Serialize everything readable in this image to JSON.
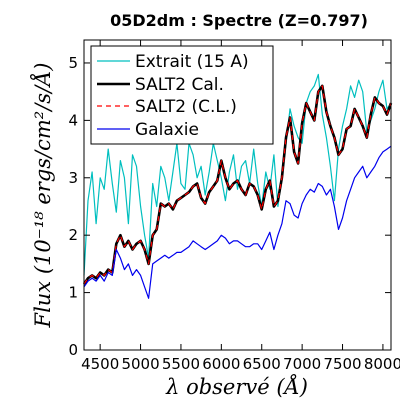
{
  "chart_data": {
    "type": "line",
    "title": "05D2dm : Spectre (Z=0.797)",
    "xlabel": "λ observé (Å)",
    "ylabel": "Flux (10⁻¹⁸ ergs/cm²/s/Å)",
    "xlim": [
      4300,
      8100
    ],
    "ylim": [
      0,
      5.4
    ],
    "xticks": [
      4500,
      5000,
      5500,
      6000,
      6500,
      7000,
      7500,
      8000
    ],
    "yticks": [
      0,
      1,
      2,
      3,
      4,
      5
    ],
    "legend_position": "top-left",
    "series": [
      {
        "name": "Extrait (15 A)",
        "color": "#00bfbf",
        "x": [
          4300,
          4350,
          4400,
          4450,
          4500,
          4550,
          4600,
          4650,
          4700,
          4750,
          4800,
          4850,
          4900,
          4950,
          5000,
          5050,
          5100,
          5150,
          5200,
          5250,
          5300,
          5350,
          5400,
          5450,
          5500,
          5550,
          5600,
          5650,
          5700,
          5750,
          5800,
          5850,
          5900,
          5950,
          6000,
          6050,
          6100,
          6150,
          6200,
          6250,
          6300,
          6350,
          6400,
          6450,
          6500,
          6550,
          6600,
          6650,
          6700,
          6750,
          6800,
          6850,
          6900,
          6950,
          7000,
          7050,
          7100,
          7150,
          7200,
          7250,
          7300,
          7350,
          7400,
          7450,
          7500,
          7550,
          7600,
          7650,
          7700,
          7750,
          7800,
          7850,
          7900,
          7950,
          8000,
          8050,
          8100
        ],
        "y": [
          1.3,
          2.6,
          3.1,
          2.2,
          3.0,
          2.8,
          3.5,
          2.9,
          2.4,
          3.3,
          3.0,
          2.2,
          3.4,
          3.2,
          2.5,
          2.0,
          1.6,
          2.9,
          2.5,
          3.2,
          3.0,
          2.6,
          3.1,
          3.6,
          2.9,
          2.8,
          3.6,
          3.4,
          3.0,
          3.2,
          2.7,
          3.1,
          3.6,
          3.3,
          3.0,
          2.6,
          3.1,
          3.4,
          2.8,
          3.2,
          3.3,
          2.9,
          3.5,
          2.9,
          2.5,
          3.1,
          2.8,
          3.4,
          2.5,
          3.0,
          3.6,
          4.2,
          3.9,
          3.7,
          3.6,
          4.3,
          4.5,
          4.6,
          4.8,
          4.1,
          3.7,
          3.2,
          2.6,
          3.5,
          3.9,
          4.2,
          4.6,
          4.4,
          4.7,
          4.5,
          3.8,
          4.0,
          4.2,
          4.5,
          4.7,
          4.2,
          4.3
        ]
      },
      {
        "name": "SALT2 Cal.",
        "color": "#000000",
        "x": [
          4300,
          4350,
          4400,
          4450,
          4500,
          4550,
          4600,
          4650,
          4700,
          4750,
          4800,
          4850,
          4900,
          4950,
          5000,
          5050,
          5100,
          5150,
          5200,
          5250,
          5300,
          5350,
          5400,
          5450,
          5500,
          5550,
          5600,
          5650,
          5700,
          5750,
          5800,
          5850,
          5900,
          5950,
          6000,
          6050,
          6100,
          6150,
          6200,
          6250,
          6300,
          6350,
          6400,
          6450,
          6500,
          6550,
          6600,
          6650,
          6700,
          6750,
          6800,
          6850,
          6900,
          6950,
          7000,
          7050,
          7100,
          7150,
          7200,
          7250,
          7300,
          7350,
          7400,
          7450,
          7500,
          7550,
          7600,
          7650,
          7700,
          7750,
          7800,
          7850,
          7900,
          7950,
          8000,
          8050,
          8100
        ],
        "y": [
          1.15,
          1.25,
          1.3,
          1.25,
          1.35,
          1.3,
          1.4,
          1.35,
          1.85,
          2.0,
          1.8,
          1.9,
          1.75,
          1.85,
          1.9,
          1.75,
          1.5,
          2.0,
          2.1,
          2.55,
          2.5,
          2.55,
          2.45,
          2.6,
          2.65,
          2.7,
          2.75,
          2.85,
          2.9,
          2.65,
          2.55,
          2.75,
          2.85,
          2.95,
          3.3,
          3.0,
          2.8,
          2.9,
          2.95,
          2.8,
          2.7,
          2.9,
          2.85,
          2.7,
          2.45,
          2.8,
          2.95,
          2.5,
          2.6,
          3.0,
          3.7,
          4.05,
          3.45,
          3.25,
          3.95,
          4.3,
          4.15,
          4.0,
          4.5,
          4.6,
          4.15,
          3.9,
          3.7,
          3.4,
          3.5,
          3.85,
          3.9,
          4.2,
          4.05,
          3.9,
          3.7,
          4.1,
          4.4,
          4.3,
          4.25,
          4.1,
          4.3
        ]
      },
      {
        "name": "SALT2 (C.L.)",
        "color": "#ff0000",
        "x": [
          4300,
          4350,
          4400,
          4450,
          4500,
          4550,
          4600,
          4650,
          4700,
          4750,
          4800,
          4850,
          4900,
          4950,
          5000,
          5050,
          5100,
          5150,
          5200,
          5250,
          5300,
          5350,
          5400,
          5450,
          5500,
          5550,
          5600,
          5650,
          5700,
          5750,
          5800,
          5850,
          5900,
          5950,
          6000,
          6050,
          6100,
          6150,
          6200,
          6250,
          6300,
          6350,
          6400,
          6450,
          6500,
          6550,
          6600,
          6650,
          6700,
          6750,
          6800,
          6850,
          6900,
          6950,
          7000,
          7050,
          7100,
          7150,
          7200,
          7250,
          7300,
          7350,
          7400,
          7450,
          7500,
          7550,
          7600,
          7650,
          7700,
          7750,
          7800,
          7850,
          7900,
          7950,
          8000,
          8050,
          8100
        ],
        "y": [
          1.15,
          1.25,
          1.3,
          1.25,
          1.35,
          1.3,
          1.4,
          1.35,
          1.85,
          2.0,
          1.8,
          1.9,
          1.75,
          1.85,
          1.9,
          1.75,
          1.5,
          2.0,
          2.1,
          2.55,
          2.5,
          2.55,
          2.45,
          2.6,
          2.65,
          2.7,
          2.75,
          2.85,
          2.9,
          2.65,
          2.55,
          2.75,
          2.85,
          2.95,
          3.3,
          3.0,
          2.8,
          2.9,
          2.95,
          2.8,
          2.7,
          2.9,
          2.85,
          2.7,
          2.45,
          2.8,
          2.95,
          2.5,
          2.6,
          3.0,
          3.7,
          4.05,
          3.45,
          3.25,
          3.95,
          4.3,
          4.15,
          4.0,
          4.5,
          4.6,
          4.15,
          3.9,
          3.7,
          3.4,
          3.5,
          3.85,
          3.9,
          4.2,
          4.05,
          3.9,
          3.7,
          4.1,
          4.4,
          4.3,
          4.25,
          4.1,
          4.3
        ]
      },
      {
        "name": "Galaxie",
        "color": "#0000ee",
        "x": [
          4300,
          4350,
          4400,
          4450,
          4500,
          4550,
          4600,
          4650,
          4700,
          4750,
          4800,
          4850,
          4900,
          4950,
          5000,
          5050,
          5100,
          5150,
          5200,
          5250,
          5300,
          5350,
          5400,
          5450,
          5500,
          5550,
          5600,
          5650,
          5700,
          5750,
          5800,
          5850,
          5900,
          5950,
          6000,
          6050,
          6100,
          6150,
          6200,
          6250,
          6300,
          6350,
          6400,
          6450,
          6500,
          6550,
          6600,
          6650,
          6700,
          6750,
          6800,
          6850,
          6900,
          6950,
          7000,
          7050,
          7100,
          7150,
          7200,
          7250,
          7300,
          7350,
          7400,
          7450,
          7500,
          7550,
          7600,
          7650,
          7700,
          7750,
          7800,
          7850,
          7900,
          7950,
          8000,
          8050,
          8100
        ],
        "y": [
          1.1,
          1.2,
          1.25,
          1.2,
          1.3,
          1.2,
          1.35,
          1.3,
          1.75,
          1.6,
          1.4,
          1.5,
          1.3,
          1.4,
          1.3,
          1.1,
          0.9,
          1.5,
          1.55,
          1.6,
          1.65,
          1.6,
          1.65,
          1.7,
          1.7,
          1.75,
          1.8,
          1.9,
          1.85,
          1.8,
          1.75,
          1.8,
          1.85,
          1.9,
          2.0,
          1.95,
          1.85,
          1.9,
          1.9,
          1.85,
          1.8,
          1.8,
          1.85,
          1.85,
          1.75,
          1.9,
          2.05,
          1.75,
          2.0,
          2.2,
          2.6,
          2.55,
          2.35,
          2.3,
          2.55,
          2.7,
          2.8,
          2.75,
          2.9,
          2.85,
          2.7,
          2.8,
          2.5,
          2.1,
          2.3,
          2.6,
          2.8,
          3.0,
          3.1,
          3.2,
          3.0,
          3.1,
          3.2,
          3.35,
          3.45,
          3.5,
          3.55
        ]
      }
    ]
  }
}
